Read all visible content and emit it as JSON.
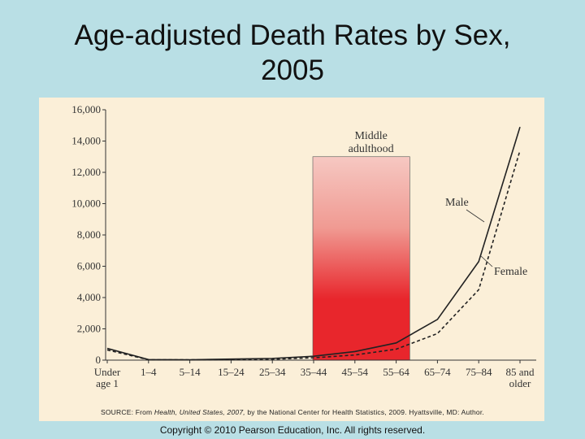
{
  "slide": {
    "title_line1": "Age-adjusted Death Rates by Sex,",
    "title_line2": "2005",
    "copyright": "Copyright © 2010 Pearson Education, Inc. All rights reserved."
  },
  "source": {
    "prefix": "SOURCE: From ",
    "italic": "Health, United States, 2007,",
    "suffix": " by the National Center for Health Statistics, 2009. Hyattsville, MD: Author."
  },
  "chart_data": {
    "type": "line",
    "title": "",
    "xlabel": "",
    "ylabel": "",
    "ylim": [
      0,
      16000
    ],
    "y_ticks": [
      "0",
      "2,000",
      "4,000",
      "6,000",
      "8,000",
      "10,000",
      "12,000",
      "14,000",
      "16,000"
    ],
    "categories": [
      [
        "Under",
        "age 1"
      ],
      [
        "1–4"
      ],
      [
        "5–14"
      ],
      [
        "15–24"
      ],
      [
        "25–34"
      ],
      [
        "35–44"
      ],
      [
        "45–54"
      ],
      [
        "55–64"
      ],
      [
        "65–74"
      ],
      [
        "75–84"
      ],
      [
        "85 and",
        "older"
      ]
    ],
    "series": [
      {
        "name": "Male",
        "style": "solid",
        "color": "#222222",
        "values": [
          750,
          35,
          25,
          70,
          110,
          250,
          550,
          1100,
          2600,
          6300,
          14900
        ]
      },
      {
        "name": "Female",
        "style": "dashed",
        "color": "#222222",
        "values": [
          650,
          25,
          20,
          40,
          60,
          150,
          330,
          700,
          1700,
          4500,
          13400
        ]
      }
    ],
    "highlight": {
      "label_line1": "Middle",
      "label_line2": "adulthood",
      "from_category": 5,
      "to_category": 7,
      "top_value": 13000,
      "gradient_top": "#f6c8c2",
      "gradient_bottom": "#e8262c"
    },
    "grid": false
  }
}
